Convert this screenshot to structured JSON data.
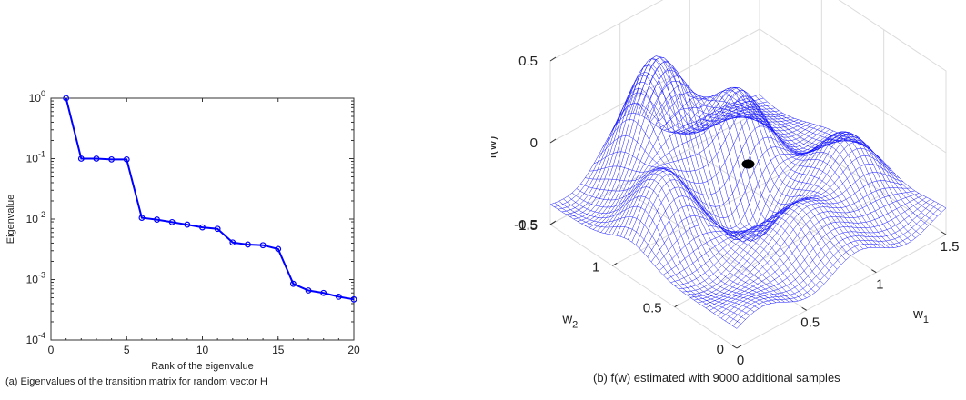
{
  "chart_data": [
    {
      "type": "line",
      "caption": "(a)   Eigenvalues of the transition matrix for random vector H",
      "xlabel": "Rank of the eigenvalue",
      "ylabel": "Eigenvalue",
      "xlim": [
        0,
        20
      ],
      "ylim": [
        0.0001,
        1
      ],
      "yscale": "log",
      "xticks": [
        "0",
        "5",
        "10",
        "15",
        "20"
      ],
      "yticks": [
        {
          "base": "10",
          "exp": "0"
        },
        {
          "base": "10",
          "exp": "-1"
        },
        {
          "base": "10",
          "exp": "-2"
        },
        {
          "base": "10",
          "exp": "-3"
        },
        {
          "base": "10",
          "exp": "-4"
        }
      ],
      "line_color": "#0000ff",
      "x": [
        1,
        2,
        3,
        4,
        5,
        6,
        7,
        8,
        9,
        10,
        11,
        12,
        13,
        14,
        15,
        16,
        17,
        18,
        19,
        20
      ],
      "y": [
        1.0,
        0.1,
        0.1,
        0.097,
        0.097,
        0.0105,
        0.0098,
        0.0089,
        0.0081,
        0.0073,
        0.0069,
        0.0041,
        0.0038,
        0.0037,
        0.0032,
        0.00085,
        0.00066,
        0.0006,
        0.00052,
        0.00047
      ],
      "grid": false
    },
    {
      "type": "surface",
      "caption": "(b)   f(w) estimated with 9000 additional samples",
      "zlabel": "f(w)",
      "xlabel": "w",
      "xlabel_sub": "1",
      "ylabel": "w",
      "ylabel_sub": "2",
      "xlim": [
        0,
        1.5
      ],
      "ylim": [
        0,
        1.5
      ],
      "zlim": [
        -0.5,
        0.5
      ],
      "xticks": [
        "0",
        "0.5",
        "1",
        "1.5"
      ],
      "yticks": [
        "0",
        "0.5",
        "1",
        "1.5"
      ],
      "zticks": [
        "-0.5",
        "0",
        "0.5"
      ],
      "mesh_color": "#0000ff",
      "marker_color": "#000000",
      "marker": {
        "w1": 0.75,
        "w2": 0.75,
        "f": -0.1
      }
    }
  ]
}
